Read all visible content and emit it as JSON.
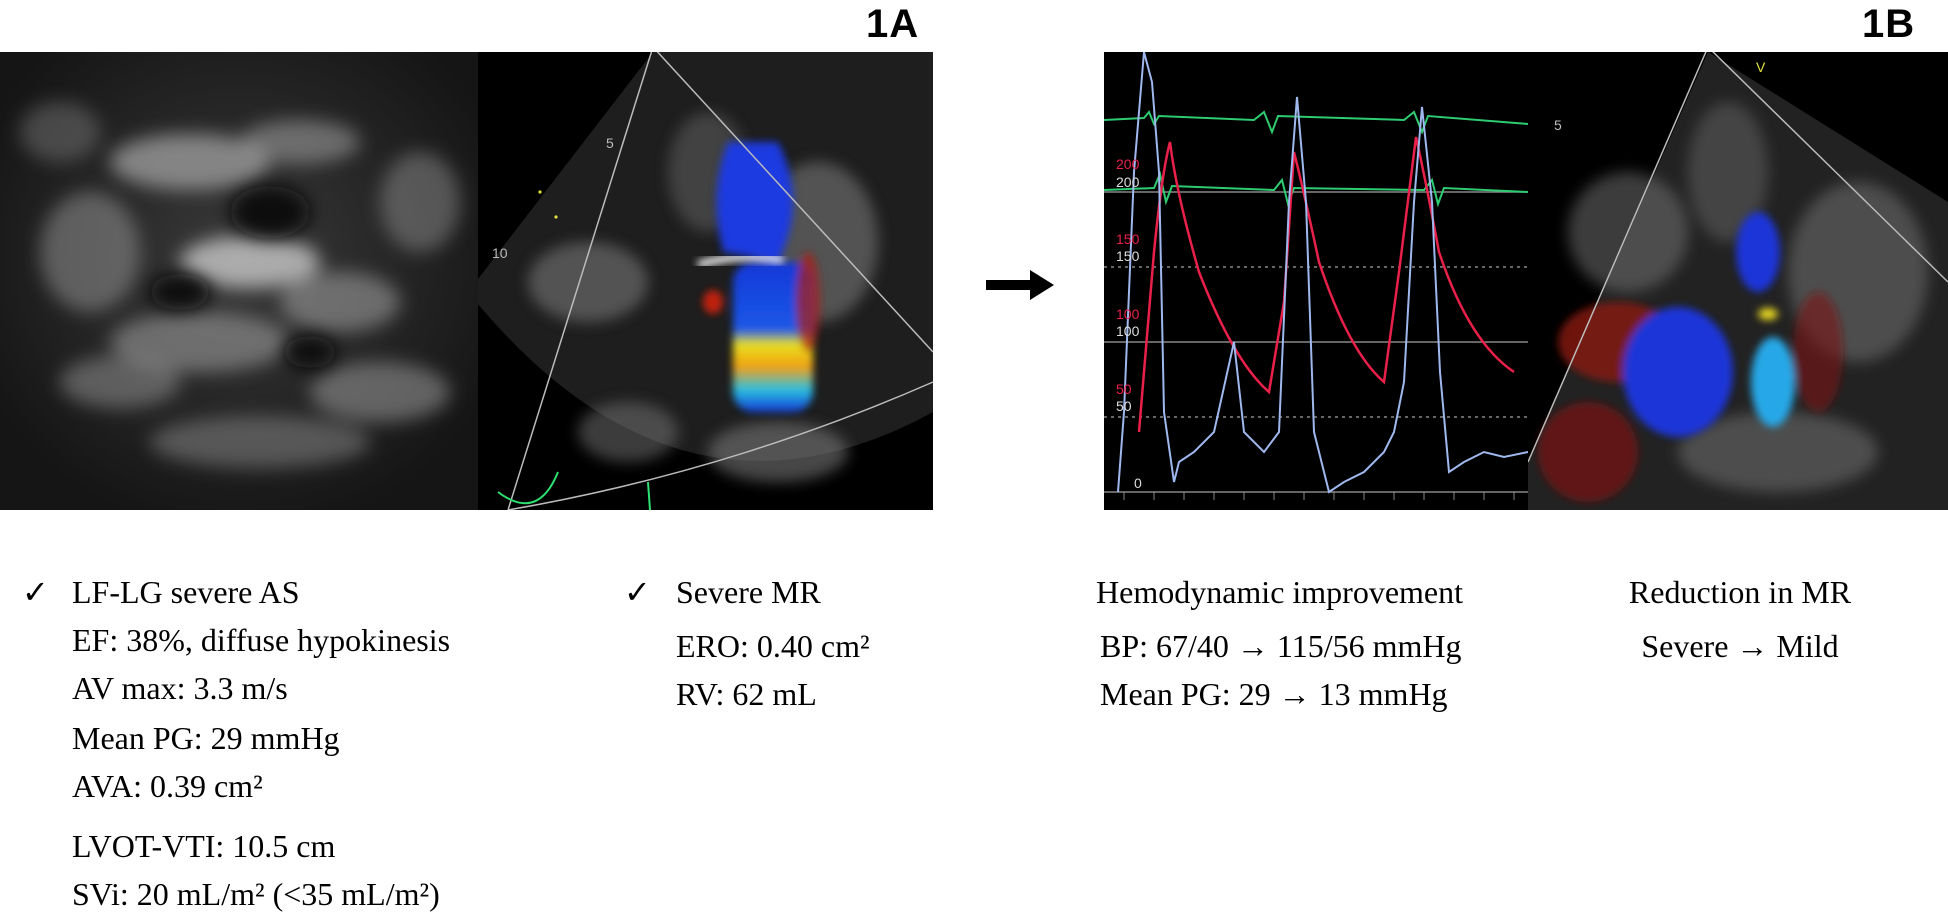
{
  "panels": {
    "a": {
      "label": "1A"
    },
    "b": {
      "label": "1B"
    }
  },
  "image_a1": {
    "description": ""
  },
  "image_a2": {
    "scale": [
      "5",
      "10"
    ]
  },
  "image_b1": {
    "scale": [
      "200",
      "200",
      "150",
      "150",
      "100",
      "100",
      "50",
      "50",
      "0"
    ],
    "colors": {
      "ecg": "#2ecc71",
      "pressure_red": "#e8204a",
      "pressure_blue": "#9fb8ee"
    }
  },
  "image_b2": {
    "scale": [
      "5",
      "V"
    ]
  },
  "block_a_left": {
    "check": "✓",
    "title": "LF-LG severe AS",
    "lines": [
      "EF: 38%, diffuse hypokinesis",
      "AV max: 3.3 m/s",
      "Mean PG: 29 mmHg",
      "AVA: 0.39 cm²",
      "LVOT-VTI: 10.5 cm",
      "SVi: 20 mL/m² (<35 mL/m²)"
    ]
  },
  "block_a_right": {
    "check": "✓",
    "title": "Severe MR",
    "lines": [
      "ERO: 0.40 cm²",
      "RV: 62 mL"
    ]
  },
  "block_b_left": {
    "title": "Hemodynamic improvement",
    "lines": [
      "BP: 67/40 → 115/56 mmHg",
      "Mean PG: 29 → 13 mmHg"
    ]
  },
  "block_b_right": {
    "title": "Reduction in MR",
    "lines": [
      "Severe → Mild"
    ]
  }
}
